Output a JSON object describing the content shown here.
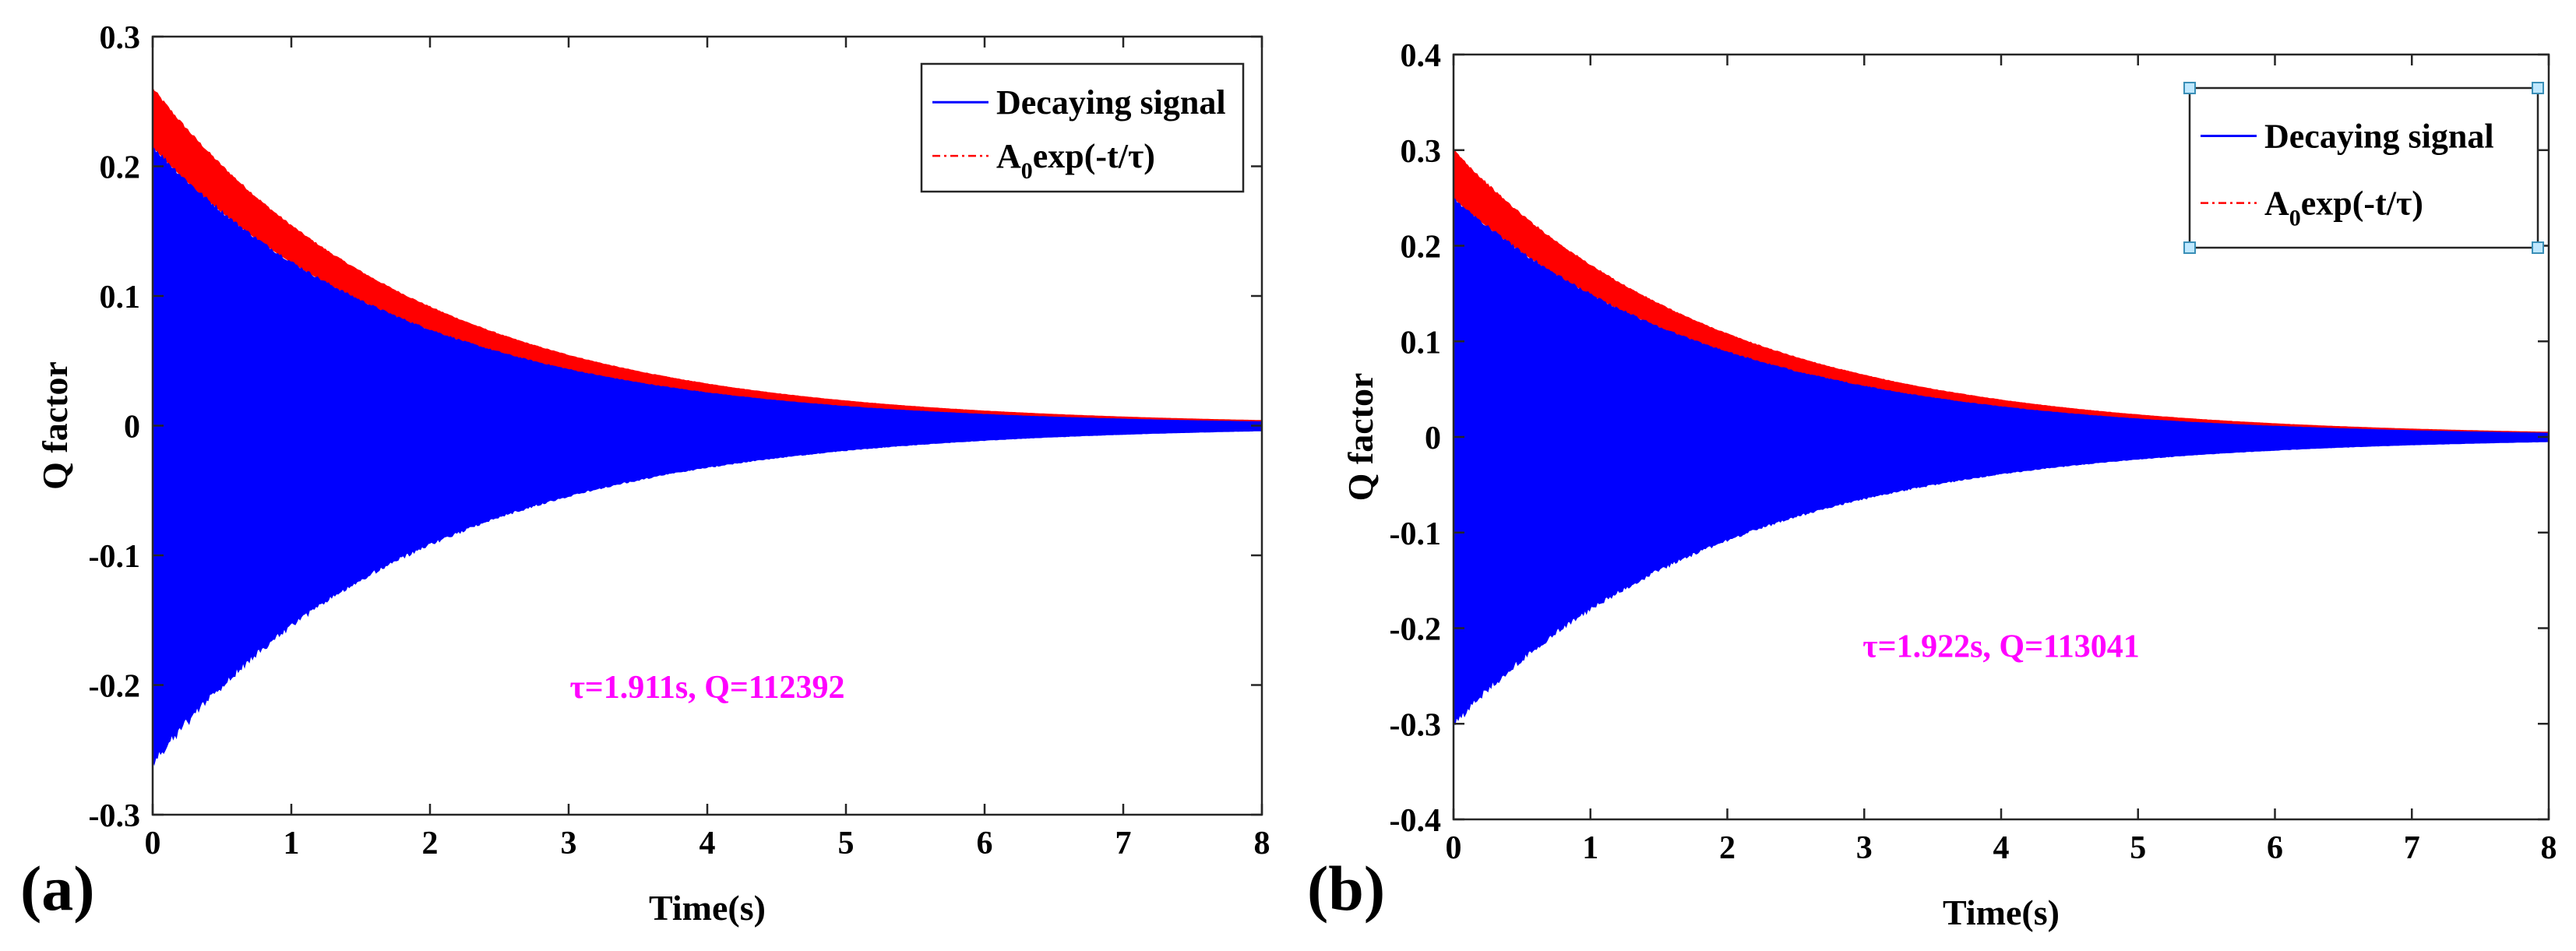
{
  "chart_data": [
    {
      "type": "line",
      "panel_label": "(a)",
      "xlabel": "Time(s)",
      "ylabel": "Q factor",
      "xlim": [
        0,
        8
      ],
      "ylim": [
        -0.3,
        0.3
      ],
      "xticks": [
        0,
        1,
        2,
        3,
        4,
        5,
        6,
        7,
        8
      ],
      "xtick_labels": [
        "0",
        "1",
        "2",
        "3",
        "4",
        "5",
        "6",
        "7",
        "8"
      ],
      "yticks": [
        0.3,
        0.2,
        0.1,
        0,
        -0.1,
        -0.2,
        -0.3
      ],
      "ytick_labels": [
        "0.3",
        "0.2",
        "0.1",
        "0",
        "-0.1",
        "-0.2",
        "-0.3"
      ],
      "series": [
        {
          "name": "Decaying signal",
          "color": "#0000ff",
          "style": "solid",
          "x": [
            0,
            1,
            2,
            3,
            4,
            5,
            6,
            7,
            8
          ],
          "upper": [
            0.215,
            0.127,
            0.075,
            0.044,
            0.026,
            0.015,
            0.009,
            0.005,
            0.003
          ],
          "lower": [
            -0.26,
            -0.155,
            -0.091,
            -0.054,
            -0.032,
            -0.019,
            -0.011,
            -0.007,
            -0.004
          ]
        },
        {
          "name": "A0exp(-t/τ)",
          "color": "#ff0000",
          "style": "dash-dot",
          "x": [
            0,
            1,
            2,
            3,
            4,
            5,
            6,
            7,
            8
          ],
          "upper": [
            0.26,
            0.154,
            0.091,
            0.054,
            0.032,
            0.019,
            0.011,
            0.007,
            0.004
          ]
        }
      ],
      "legend": {
        "position": "top-right",
        "entries": [
          {
            "text": "Decaying signal",
            "color": "#0000ff"
          },
          {
            "base": "A",
            "sub": "0",
            "rest": "exp(-t/τ)",
            "color": "#ff0000"
          }
        ]
      },
      "annotation": {
        "text": "τ=1.911s, Q=112392",
        "color": "#ff00ff",
        "x": 4.0,
        "y": -0.21
      }
    },
    {
      "type": "line",
      "panel_label": "(b)",
      "xlabel": "Time(s)",
      "ylabel": "Q factor",
      "xlim": [
        0,
        8
      ],
      "ylim": [
        -0.4,
        0.4
      ],
      "xticks": [
        0,
        1,
        2,
        3,
        4,
        5,
        6,
        7,
        8
      ],
      "xtick_labels": [
        "0",
        "1",
        "2",
        "3",
        "4",
        "5",
        "6",
        "7",
        "8"
      ],
      "yticks": [
        0.4,
        0.3,
        0.2,
        0.1,
        0,
        -0.1,
        -0.2,
        -0.3,
        -0.4
      ],
      "ytick_labels": [
        "0.4",
        "0.3",
        "0.2",
        "0.1",
        "0",
        "-0.1",
        "-0.2",
        "-0.3",
        "-0.4"
      ],
      "series": [
        {
          "name": "Decaying signal",
          "color": "#0000ff",
          "style": "solid",
          "x": [
            0,
            1,
            2,
            3,
            4,
            5,
            6,
            7,
            8
          ],
          "upper": [
            0.25,
            0.148,
            0.088,
            0.052,
            0.031,
            0.018,
            0.011,
            0.006,
            0.004
          ],
          "lower": [
            -0.3,
            -0.178,
            -0.105,
            -0.063,
            -0.037,
            -0.022,
            -0.013,
            -0.008,
            -0.005
          ]
        },
        {
          "name": "A0exp(-t/τ)",
          "color": "#ff0000",
          "style": "dash-dot",
          "x": [
            0,
            1,
            2,
            3,
            4,
            5,
            6,
            7,
            8
          ],
          "upper": [
            0.3,
            0.178,
            0.105,
            0.063,
            0.037,
            0.022,
            0.013,
            0.008,
            0.005
          ]
        }
      ],
      "legend": {
        "position": "top-right",
        "selected": true,
        "entries": [
          {
            "text": "Decaying signal",
            "color": "#0000ff"
          },
          {
            "base": "A",
            "sub": "0",
            "rest": "exp(-t/τ)",
            "color": "#ff0000"
          }
        ]
      },
      "annotation": {
        "text": "τ=1.922s, Q=113041",
        "color": "#ff00ff",
        "x": 4.0,
        "y": -0.23
      }
    }
  ]
}
